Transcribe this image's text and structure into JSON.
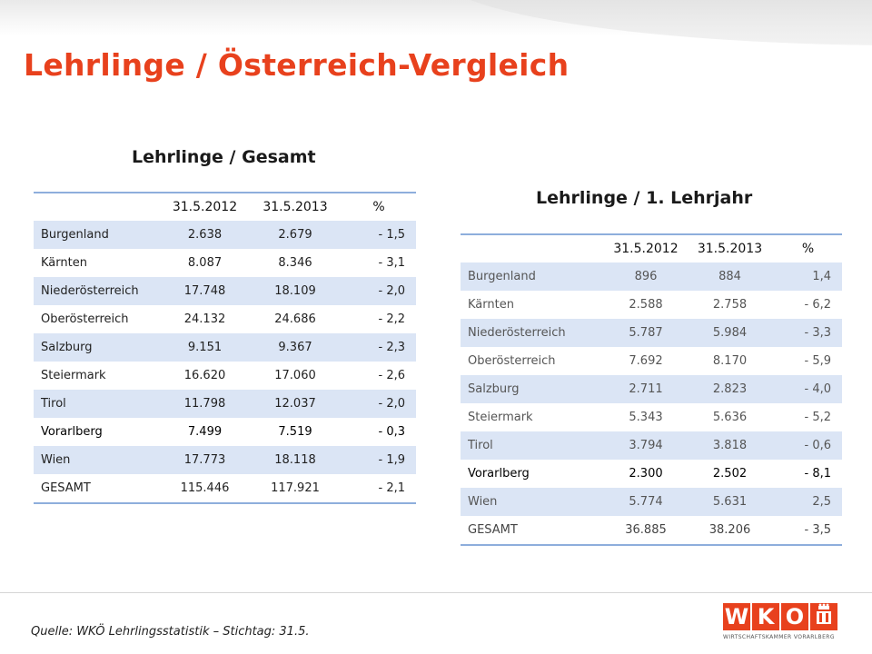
{
  "title": "Lehrlinge / Österreich-Vergleich",
  "table_gesamt": {
    "title": "Lehrlinge / Gesamt",
    "headers": [
      "",
      "31.5.2012",
      "31.5.2013",
      "%"
    ],
    "rows": [
      {
        "region": "Burgenland",
        "v2012": "2.638",
        "v2013": "2.679",
        "pct": "- 1,5"
      },
      {
        "region": "Kärnten",
        "v2012": "8.087",
        "v2013": "8.346",
        "pct": "- 3,1"
      },
      {
        "region": "Niederösterreich",
        "v2012": "17.748",
        "v2013": "18.109",
        "pct": "- 2,0"
      },
      {
        "region": "Oberösterreich",
        "v2012": "24.132",
        "v2013": "24.686",
        "pct": "- 2,2"
      },
      {
        "region": "Salzburg",
        "v2012": "9.151",
        "v2013": "9.367",
        "pct": "- 2,3"
      },
      {
        "region": "Steiermark",
        "v2012": "16.620",
        "v2013": "17.060",
        "pct": "- 2,6"
      },
      {
        "region": "Tirol",
        "v2012": "11.798",
        "v2013": "12.037",
        "pct": "- 2,0"
      },
      {
        "region": "Vorarlberg",
        "v2012": "7.499",
        "v2013": "7.519",
        "pct": "- 0,3"
      },
      {
        "region": "Wien",
        "v2012": "17.773",
        "v2013": "18.118",
        "pct": "- 1,9"
      },
      {
        "region": "GESAMT",
        "v2012": "115.446",
        "v2013": "117.921",
        "pct": "- 2,1"
      }
    ]
  },
  "table_lehrjahr1": {
    "title": "Lehrlinge / 1. Lehrjahr",
    "headers": [
      "",
      "31.5.2012",
      "31.5.2013",
      "%"
    ],
    "rows": [
      {
        "region": "Burgenland",
        "v2012": "896",
        "v2013": "884",
        "pct": "1,4"
      },
      {
        "region": "Kärnten",
        "v2012": "2.588",
        "v2013": "2.758",
        "pct": "- 6,2"
      },
      {
        "region": "Niederösterreich",
        "v2012": "5.787",
        "v2013": "5.984",
        "pct": "- 3,3"
      },
      {
        "region": "Oberösterreich",
        "v2012": "7.692",
        "v2013": "8.170",
        "pct": "- 5,9"
      },
      {
        "region": "Salzburg",
        "v2012": "2.711",
        "v2013": "2.823",
        "pct": "- 4,0"
      },
      {
        "region": "Steiermark",
        "v2012": "5.343",
        "v2013": "5.636",
        "pct": "- 5,2"
      },
      {
        "region": "Tirol",
        "v2012": "3.794",
        "v2013": "3.818",
        "pct": "- 0,6"
      },
      {
        "region": "Vorarlberg",
        "v2012": "2.300",
        "v2013": "2.502",
        "pct": "- 8,1"
      },
      {
        "region": "Wien",
        "v2012": "5.774",
        "v2013": "5.631",
        "pct": "2,5"
      },
      {
        "region": "GESAMT",
        "v2012": "36.885",
        "v2013": "38.206",
        "pct": "- 3,5"
      }
    ]
  },
  "footer": {
    "source": "Quelle: WKÖ Lehrlingsstatistik – Stichtag: 31.5."
  },
  "logo": {
    "letters": [
      "W",
      "K",
      "O"
    ],
    "subline": "WIRTSCHAFTSKAMMER VORARLBERG"
  },
  "colors": {
    "accent": "#e8411d",
    "row_shade": "#dbe5f5",
    "rule": "#8eaedc"
  }
}
